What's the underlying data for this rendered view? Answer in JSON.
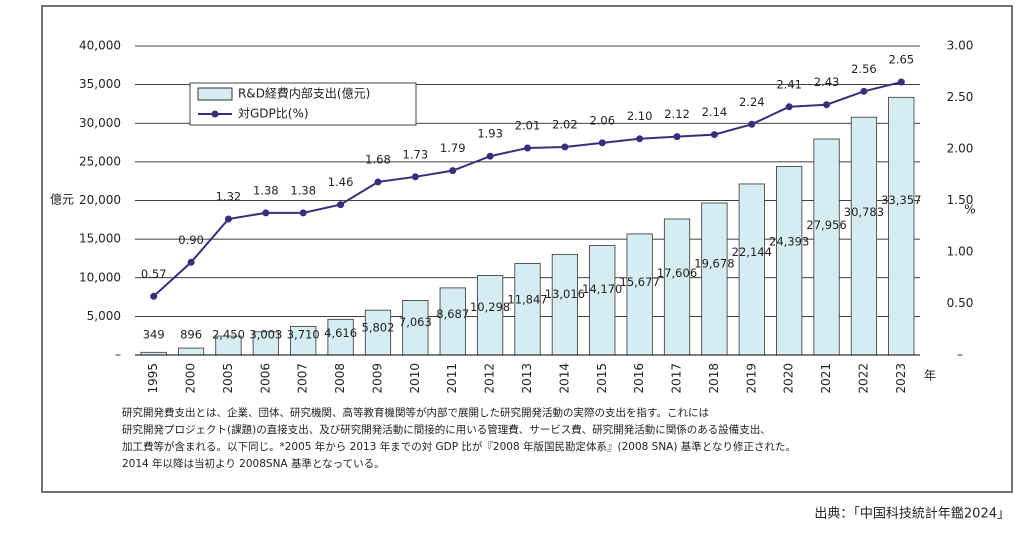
{
  "chart_data": {
    "type": "bar-line",
    "categories": [
      "1995",
      "2000",
      "2005",
      "2006",
      "2007",
      "2008",
      "2009",
      "2010",
      "2011",
      "2012",
      "2013",
      "2014",
      "2015",
      "2016",
      "2017",
      "2018",
      "2019",
      "2020",
      "2021",
      "2022",
      "2023"
    ],
    "series": [
      {
        "name": "R&D経費内部支出(億元)",
        "type": "bar",
        "color": "#d5ecf3",
        "values": [
          349,
          896,
          2450,
          3003,
          3710,
          4616,
          5802,
          7063,
          8687,
          10298,
          11847,
          13016,
          14170,
          15677,
          17606,
          19678,
          22144,
          24393,
          27956,
          30783,
          33357
        ],
        "value_labels": [
          "349",
          "896",
          "2,450",
          "3,003",
          "3,710",
          "4,616",
          "5,802",
          "7,063",
          "8,687",
          "10,298",
          "11,847",
          "13,016",
          "14,170",
          "15,677",
          "17,606",
          "19,678",
          "22,144",
          "24,393",
          "27,956",
          "30,783",
          "33,357"
        ]
      },
      {
        "name": "対GDP比(%)",
        "type": "line",
        "axis": "y2",
        "color": "#3a2e7c",
        "values": [
          0.57,
          0.9,
          1.32,
          1.38,
          1.38,
          1.46,
          1.68,
          1.73,
          1.79,
          1.93,
          2.01,
          2.02,
          2.06,
          2.1,
          2.12,
          2.14,
          2.24,
          2.41,
          2.43,
          2.56,
          2.65
        ],
        "value_labels": [
          "0.57",
          "0.90",
          "1.32",
          "1.38",
          "1.38",
          "1.46",
          "1.68",
          "1.73",
          "1.79",
          "1.93",
          "2.01",
          "2.02",
          "2.06",
          "2.10",
          "2.12",
          "2.14",
          "2.24",
          "2.41",
          "2.43",
          "2.56",
          "2.65"
        ]
      }
    ],
    "ylabel": "億元",
    "y2label": "%",
    "xlabel": "年",
    "ylim": [
      0,
      40000
    ],
    "yticks": [
      {
        "value": 0,
        "label": "–"
      },
      {
        "value": 5000,
        "label": "5,000"
      },
      {
        "value": 10000,
        "label": "10,000"
      },
      {
        "value": 15000,
        "label": "15,000"
      },
      {
        "value": 20000,
        "label": "20,000"
      },
      {
        "value": 25000,
        "label": "25,000"
      },
      {
        "value": 30000,
        "label": "30,000"
      },
      {
        "value": 35000,
        "label": "35,000"
      },
      {
        "value": 40000,
        "label": "40,000"
      }
    ],
    "y2lim": [
      0,
      3
    ],
    "y2ticks": [
      {
        "value": 0,
        "label": "–"
      },
      {
        "value": 0.5,
        "label": "0.50"
      },
      {
        "value": 1,
        "label": "1.00"
      },
      {
        "value": 1.5,
        "label": "1.50"
      },
      {
        "value": 2,
        "label": "2.00"
      },
      {
        "value": 2.5,
        "label": "2.50"
      },
      {
        "value": 3,
        "label": "3.00"
      }
    ],
    "grid": true,
    "legend": "upper-left",
    "notes": [
      "研究開発費支出とは、企業、団体、研究機関、高等教育機関等が内部で展開した研究開発活動の実際の支出を指す。これには",
      "研究開発プロジェクト(課題)の直接支出、及び研究開発活動に間接的に用いる管理費、サービス費、研究開発活動に関係のある設備支出、",
      "加工費等が含まれる。以下同じ。*2005 年から 2013 年までの対 GDP 比が『2008 年版国民勘定体系』(2008 SNA) 基準となり修正された。",
      "2014 年以降は当初より 2008SNA 基準となっている。"
    ],
    "source": "出典：「中国科技統計年鑑2024」"
  }
}
